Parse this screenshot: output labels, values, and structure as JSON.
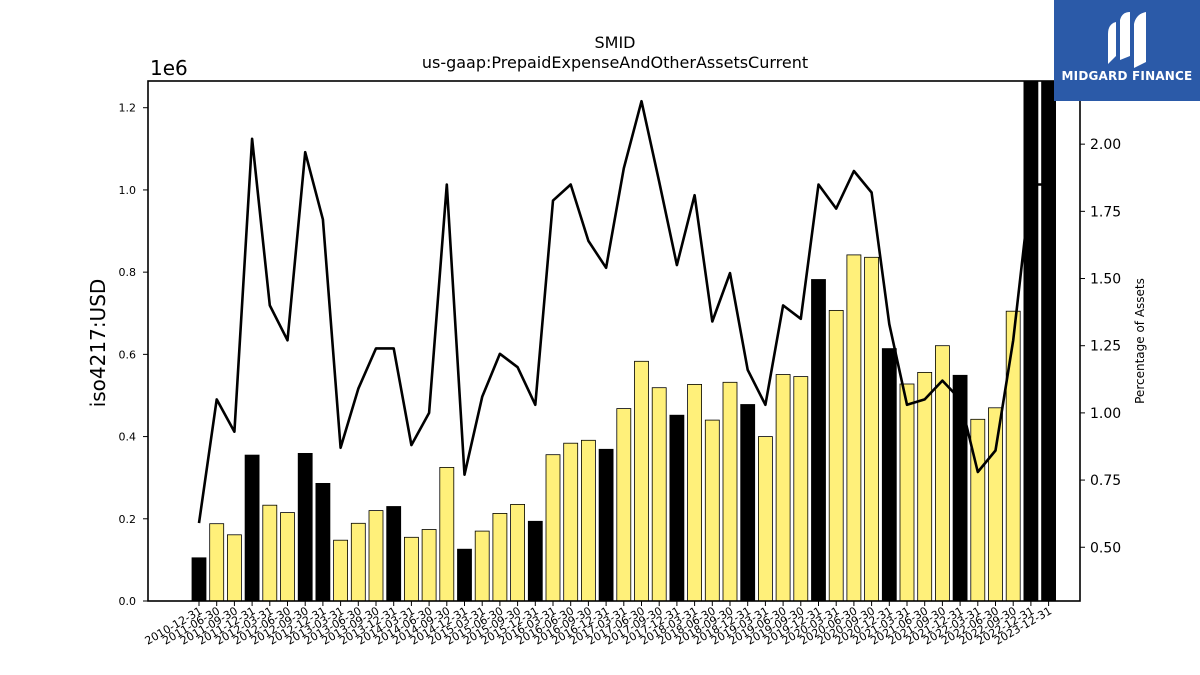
{
  "chart_data": {
    "type": "bar",
    "title": "SMID",
    "subtitle": "us-gaap:PrepaidExpenseAndOtherAssetsCurrent",
    "ylabel": "iso4217:USD",
    "ylabel_right": "Percentage of Assets",
    "offset_text": "1e6",
    "ylim": [
      0,
      1.265
    ],
    "ylim_right": [
      0.3,
      2.235
    ],
    "yticks": [
      "0.0",
      "0.2",
      "0.4",
      "0.6",
      "0.8",
      "1.0",
      "1.2"
    ],
    "yticks_right": [
      "0.50",
      "0.75",
      "1.00",
      "1.25",
      "1.50",
      "1.75",
      "2.00"
    ],
    "grid": false,
    "colors": {
      "bar_annual": "#000000",
      "bar_quarter": "#fff07a",
      "line": "#000000"
    },
    "categories": [
      "2010-12-31",
      "2011-06-30",
      "2011-09-30",
      "2011-12-31",
      "2012-03-31",
      "2012-06-30",
      "2012-09-30",
      "2012-12-31",
      "2013-03-31",
      "2013-06-30",
      "2013-09-30",
      "2013-12-31",
      "2014-03-31",
      "2014-06-30",
      "2014-09-30",
      "2014-12-31",
      "2015-03-31",
      "2015-06-30",
      "2015-09-30",
      "2015-12-31",
      "2016-03-31",
      "2016-06-30",
      "2016-09-30",
      "2016-12-31",
      "2017-03-31",
      "2017-06-30",
      "2017-09-30",
      "2017-12-31",
      "2018-03-31",
      "2018-06-30",
      "2018-09-30",
      "2018-12-31",
      "2019-03-31",
      "2019-06-30",
      "2019-09-30",
      "2019-12-31",
      "2020-03-31",
      "2020-06-30",
      "2020-09-30",
      "2020-12-31",
      "2021-03-31",
      "2021-06-30",
      "2021-09-30",
      "2021-12-31",
      "2022-03-31",
      "2022-06-30",
      "2022-09-30",
      "2022-12-31",
      "2023-12-31"
    ],
    "series": [
      {
        "kind": "bar",
        "values": [
          0.105,
          0.188,
          0.161,
          0.355,
          0.233,
          0.215,
          0.359,
          0.286,
          0.148,
          0.189,
          0.22,
          0.23,
          0.155,
          0.174,
          0.325,
          0.126,
          0.17,
          0.213,
          0.235,
          0.194,
          0.356,
          0.384,
          0.391,
          0.369,
          0.468,
          0.583,
          0.519,
          0.452,
          0.527,
          0.44,
          0.532,
          0.478,
          0.4,
          0.551,
          0.546,
          0.782,
          0.707,
          0.842,
          0.836,
          0.614,
          0.528,
          0.556,
          0.621,
          0.549,
          0.442,
          0.47,
          0.705,
          1.265,
          1.265
        ],
        "annual": [
          true,
          false,
          false,
          true,
          false,
          false,
          true,
          true,
          false,
          false,
          false,
          true,
          false,
          false,
          false,
          true,
          false,
          false,
          false,
          true,
          false,
          false,
          false,
          true,
          false,
          false,
          false,
          true,
          false,
          false,
          false,
          true,
          false,
          false,
          false,
          true,
          false,
          false,
          false,
          true,
          false,
          false,
          false,
          true,
          false,
          false,
          false,
          true,
          true
        ]
      },
      {
        "kind": "line",
        "axis": "right",
        "values": [
          0.59,
          1.05,
          0.93,
          2.02,
          1.4,
          1.27,
          1.97,
          1.72,
          0.87,
          1.09,
          1.24,
          1.24,
          0.88,
          1.0,
          1.85,
          0.77,
          1.06,
          1.22,
          1.17,
          1.03,
          1.79,
          1.85,
          1.64,
          1.54,
          1.91,
          2.16,
          1.86,
          1.55,
          1.81,
          1.34,
          1.52,
          1.16,
          1.03,
          1.4,
          1.35,
          1.85,
          1.76,
          1.9,
          1.82,
          1.33,
          1.03,
          1.05,
          1.12,
          1.05,
          0.78,
          0.86,
          1.27,
          1.85,
          1.85
        ]
      }
    ]
  },
  "logo": {
    "text": "MIDGARD FINANCE"
  }
}
